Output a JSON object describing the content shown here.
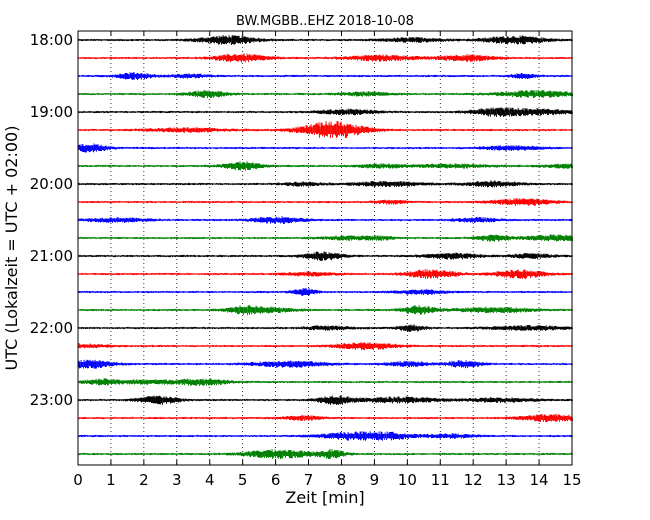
{
  "chart_data": {
    "type": "line",
    "title": "BW.MGBB..EHZ 2018-10-08",
    "xlabel": "Zeit  [min]",
    "ylabel": "UTC (Lokalzeit = UTC + 02:00)",
    "xlim": [
      0,
      15
    ],
    "x_ticks": [
      0,
      1,
      2,
      3,
      4,
      5,
      6,
      7,
      8,
      9,
      10,
      11,
      12,
      13,
      14,
      15
    ],
    "y_ticks": [
      "18:00",
      "19:00",
      "20:00",
      "21:00",
      "22:00",
      "23:00"
    ],
    "grid": "vertical dotted",
    "series_colors": [
      "#000000",
      "#ff0000",
      "#0000ff",
      "#008000"
    ],
    "traces": [
      {
        "start": "18:00",
        "color": "#000000"
      },
      {
        "start": "18:15",
        "color": "#ff0000"
      },
      {
        "start": "18:30",
        "color": "#0000ff"
      },
      {
        "start": "18:45",
        "color": "#008000"
      },
      {
        "start": "19:00",
        "color": "#000000"
      },
      {
        "start": "19:15",
        "color": "#ff0000"
      },
      {
        "start": "19:30",
        "color": "#0000ff"
      },
      {
        "start": "19:45",
        "color": "#008000"
      },
      {
        "start": "20:00",
        "color": "#000000"
      },
      {
        "start": "20:15",
        "color": "#ff0000"
      },
      {
        "start": "20:30",
        "color": "#0000ff"
      },
      {
        "start": "20:45",
        "color": "#008000"
      },
      {
        "start": "21:00",
        "color": "#000000"
      },
      {
        "start": "21:15",
        "color": "#ff0000"
      },
      {
        "start": "21:30",
        "color": "#0000ff"
      },
      {
        "start": "21:45",
        "color": "#008000"
      },
      {
        "start": "22:00",
        "color": "#000000"
      },
      {
        "start": "22:15",
        "color": "#ff0000"
      },
      {
        "start": "22:30",
        "color": "#0000ff"
      },
      {
        "start": "22:45",
        "color": "#008000"
      },
      {
        "start": "23:00",
        "color": "#000000"
      },
      {
        "start": "23:15",
        "color": "#ff0000"
      },
      {
        "start": "23:30",
        "color": "#0000ff"
      },
      {
        "start": "23:45",
        "color": "#008000"
      }
    ]
  }
}
